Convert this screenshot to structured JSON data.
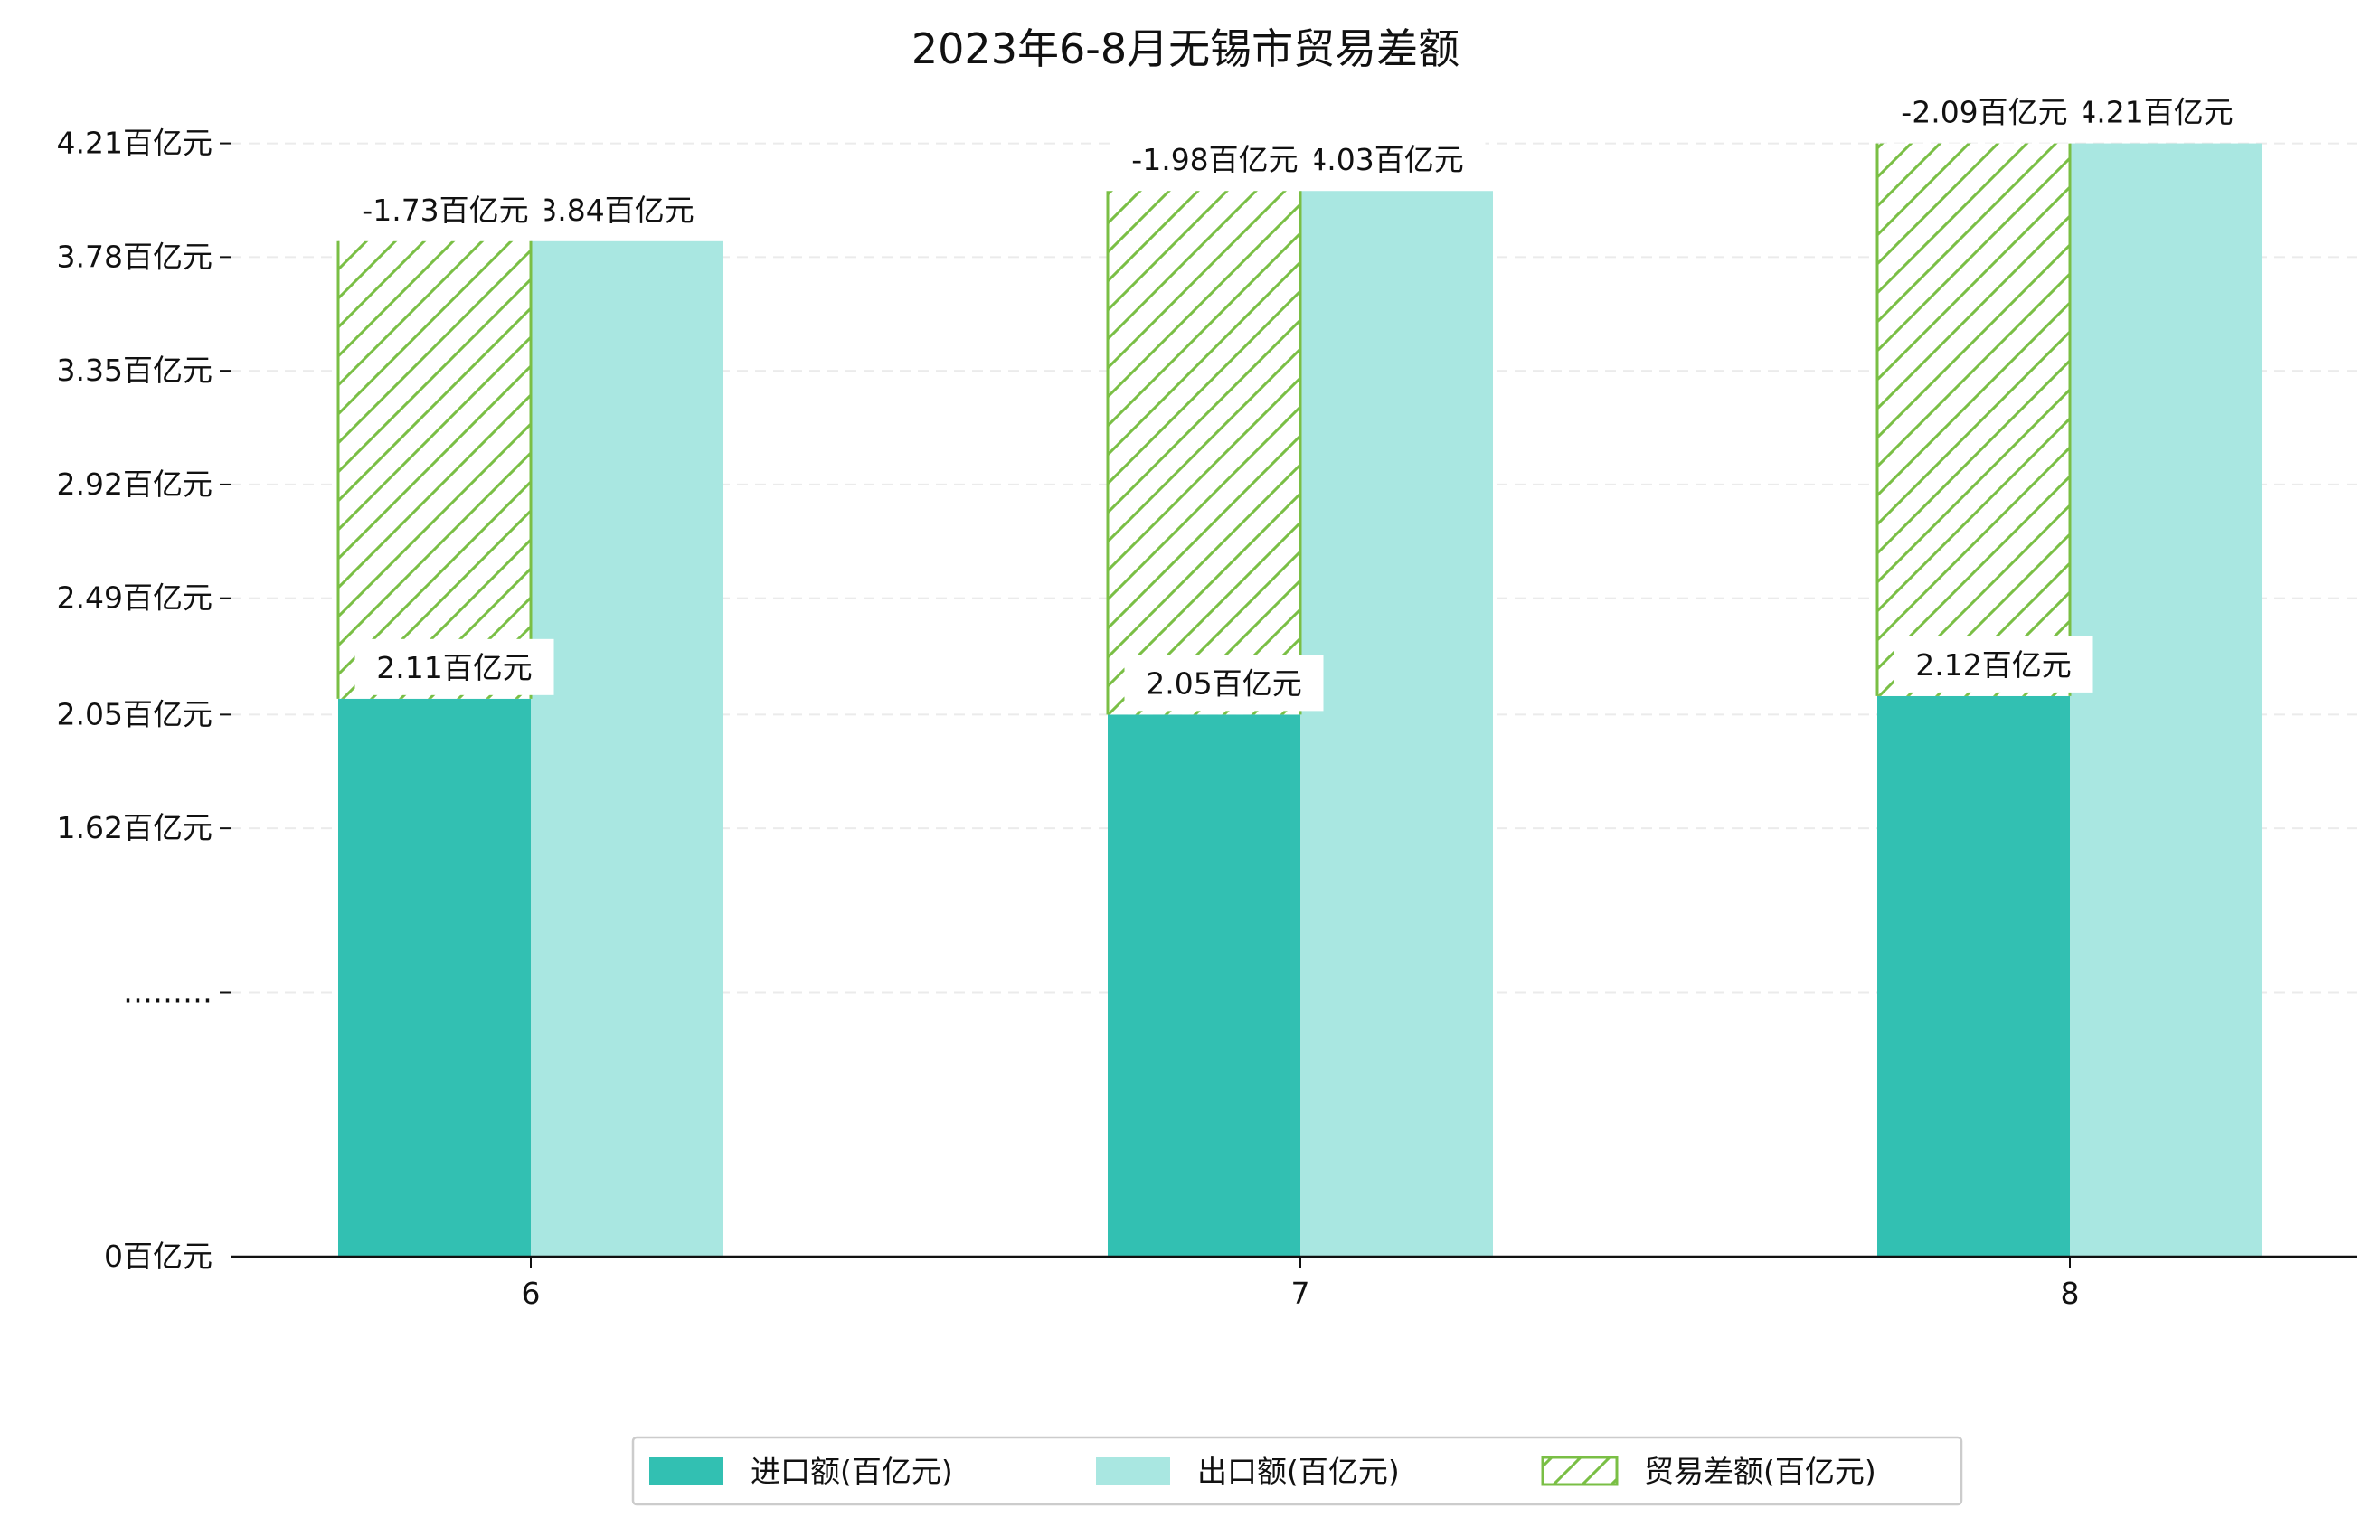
{
  "chart_data": {
    "type": "bar",
    "title": "2023年6-8月无锡市贸易差额",
    "categories": [
      "6",
      "7",
      "8"
    ],
    "y_ticks": [
      {
        "value": 0,
        "label": "0百亿元"
      },
      {
        "value": 1,
        "label": "………"
      },
      {
        "value": 1.62,
        "label": "1.62百亿元"
      },
      {
        "value": 2.05,
        "label": "2.05百亿元"
      },
      {
        "value": 2.49,
        "label": "2.49百亿元"
      },
      {
        "value": 2.92,
        "label": "2.92百亿元"
      },
      {
        "value": 3.35,
        "label": "3.35百亿元"
      },
      {
        "value": 3.78,
        "label": "3.78百亿元"
      },
      {
        "value": 4.21,
        "label": "4.21百亿元"
      }
    ],
    "ylim": [
      0,
      4.21
    ],
    "grid": true,
    "legend_position": "bottom",
    "series": [
      {
        "name": "进口额(百亿元)",
        "color": "#32c0b2",
        "values": [
          2.11,
          2.05,
          2.12
        ],
        "labels": [
          "2.11百亿元",
          "2.05百亿元",
          "2.12百亿元"
        ]
      },
      {
        "name": "出口额(百亿元)",
        "color": "#a9e7e1",
        "values": [
          3.84,
          4.03,
          4.21
        ],
        "labels": [
          "3.84百亿元",
          "4.03百亿元",
          "4.21百亿元"
        ]
      },
      {
        "name": "贸易差额(百亿元)",
        "color": "#7abf45",
        "pattern": "hatch",
        "values": [
          -1.73,
          -1.98,
          -2.09
        ],
        "labels": [
          "-1.73百亿元",
          "-1.98百亿元",
          "-2.09百亿元"
        ]
      }
    ]
  }
}
